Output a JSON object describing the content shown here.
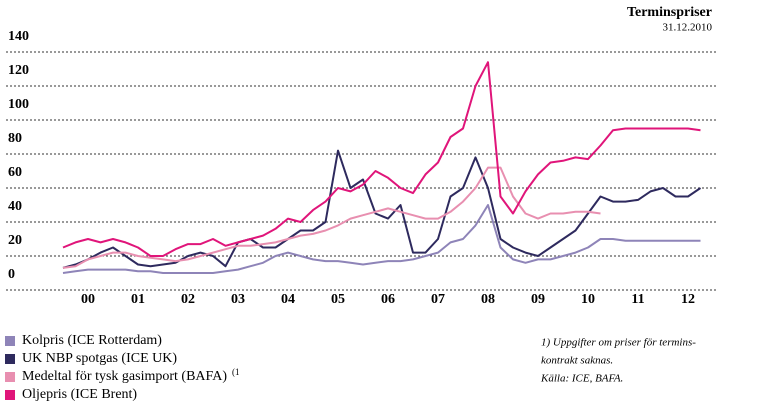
{
  "chart_data": {
    "type": "line",
    "title": "Terminspriser",
    "subtitle": "31.12.2010",
    "x": [
      2000,
      2000.25,
      2000.5,
      2000.75,
      2001,
      2001.25,
      2001.5,
      2001.75,
      2002,
      2002.25,
      2002.5,
      2002.75,
      2003,
      2003.25,
      2003.5,
      2003.75,
      2004,
      2004.25,
      2004.5,
      2004.75,
      2005,
      2005.25,
      2005.5,
      2005.75,
      2006,
      2006.25,
      2006.5,
      2006.75,
      2007,
      2007.25,
      2007.5,
      2007.75,
      2008,
      2008.25,
      2008.5,
      2008.75,
      2009,
      2009.25,
      2009.5,
      2009.75,
      2010,
      2010.25,
      2010.5,
      2010.75,
      2011,
      2011.25,
      2011.5,
      2011.75,
      2012,
      2012.25,
      2012.5,
      2012.75
    ],
    "xlim": [
      2000,
      2013
    ],
    "xticks": [
      {
        "value": 2000.5,
        "label": "00"
      },
      {
        "value": 2001.5,
        "label": "01"
      },
      {
        "value": 2002.5,
        "label": "02"
      },
      {
        "value": 2003.5,
        "label": "03"
      },
      {
        "value": 2004.5,
        "label": "04"
      },
      {
        "value": 2005.5,
        "label": "05"
      },
      {
        "value": 2006.5,
        "label": "06"
      },
      {
        "value": 2007.5,
        "label": "07"
      },
      {
        "value": 2008.5,
        "label": "08"
      },
      {
        "value": 2009.5,
        "label": "09"
      },
      {
        "value": 2010.5,
        "label": "10"
      },
      {
        "value": 2011.5,
        "label": "11"
      },
      {
        "value": 2012.5,
        "label": "12"
      }
    ],
    "ylim": [
      0,
      140
    ],
    "yticks": [
      0,
      20,
      40,
      60,
      80,
      100,
      120,
      140
    ],
    "grid": true,
    "series": [
      {
        "name": "Kolpris (ICE Rotterdam)",
        "color": "#8e84b8",
        "values": [
          10,
          11,
          12,
          12,
          12,
          12,
          11,
          11,
          10,
          10,
          10,
          10,
          10,
          11,
          12,
          14,
          16,
          20,
          22,
          20,
          18,
          17,
          17,
          16,
          15,
          16,
          17,
          17,
          18,
          20,
          22,
          28,
          30,
          38,
          50,
          25,
          18,
          16,
          18,
          18,
          20,
          22,
          25,
          30,
          30,
          29,
          29,
          29,
          29,
          29,
          29,
          29
        ]
      },
      {
        "name": "UK NBP spotgas (ICE UK)",
        "color": "#2e2a5e",
        "values": [
          13,
          15,
          18,
          22,
          25,
          20,
          15,
          14,
          15,
          16,
          20,
          22,
          20,
          14,
          28,
          30,
          25,
          25,
          30,
          35,
          35,
          40,
          82,
          60,
          65,
          45,
          42,
          50,
          22,
          22,
          30,
          55,
          60,
          78,
          60,
          30,
          25,
          22,
          20,
          25,
          30,
          35,
          45,
          55,
          52,
          52,
          53,
          58,
          60,
          55,
          55,
          60
        ]
      },
      {
        "name": "Medeltal för tysk gasimport (BAFA)",
        "color": "#e88fb0",
        "values": [
          13,
          14,
          18,
          20,
          22,
          22,
          20,
          19,
          18,
          17,
          18,
          20,
          22,
          24,
          26,
          26,
          27,
          28,
          30,
          32,
          33,
          35,
          38,
          42,
          44,
          46,
          48,
          46,
          44,
          42,
          42,
          46,
          52,
          60,
          72,
          72,
          55,
          45,
          42,
          45,
          45,
          46,
          46,
          45,
          null,
          null,
          null,
          null,
          null,
          null,
          null,
          null
        ]
      },
      {
        "name": "Oljepris (ICE Brent)",
        "color": "#e0157a",
        "values": [
          25,
          28,
          30,
          28,
          30,
          28,
          25,
          20,
          20,
          24,
          27,
          27,
          30,
          26,
          28,
          30,
          32,
          36,
          42,
          40,
          47,
          52,
          60,
          58,
          62,
          70,
          66,
          60,
          57,
          68,
          75,
          90,
          95,
          120,
          134,
          55,
          45,
          58,
          68,
          75,
          76,
          78,
          77,
          85,
          94,
          95,
          95,
          95,
          95,
          95,
          95,
          94
        ]
      }
    ],
    "legend_note": "(1",
    "footnotes": [
      "1) Uppgifter om priser för termins-",
      "kontrakt saknas.",
      "Källa: ICE, BAFA."
    ]
  }
}
